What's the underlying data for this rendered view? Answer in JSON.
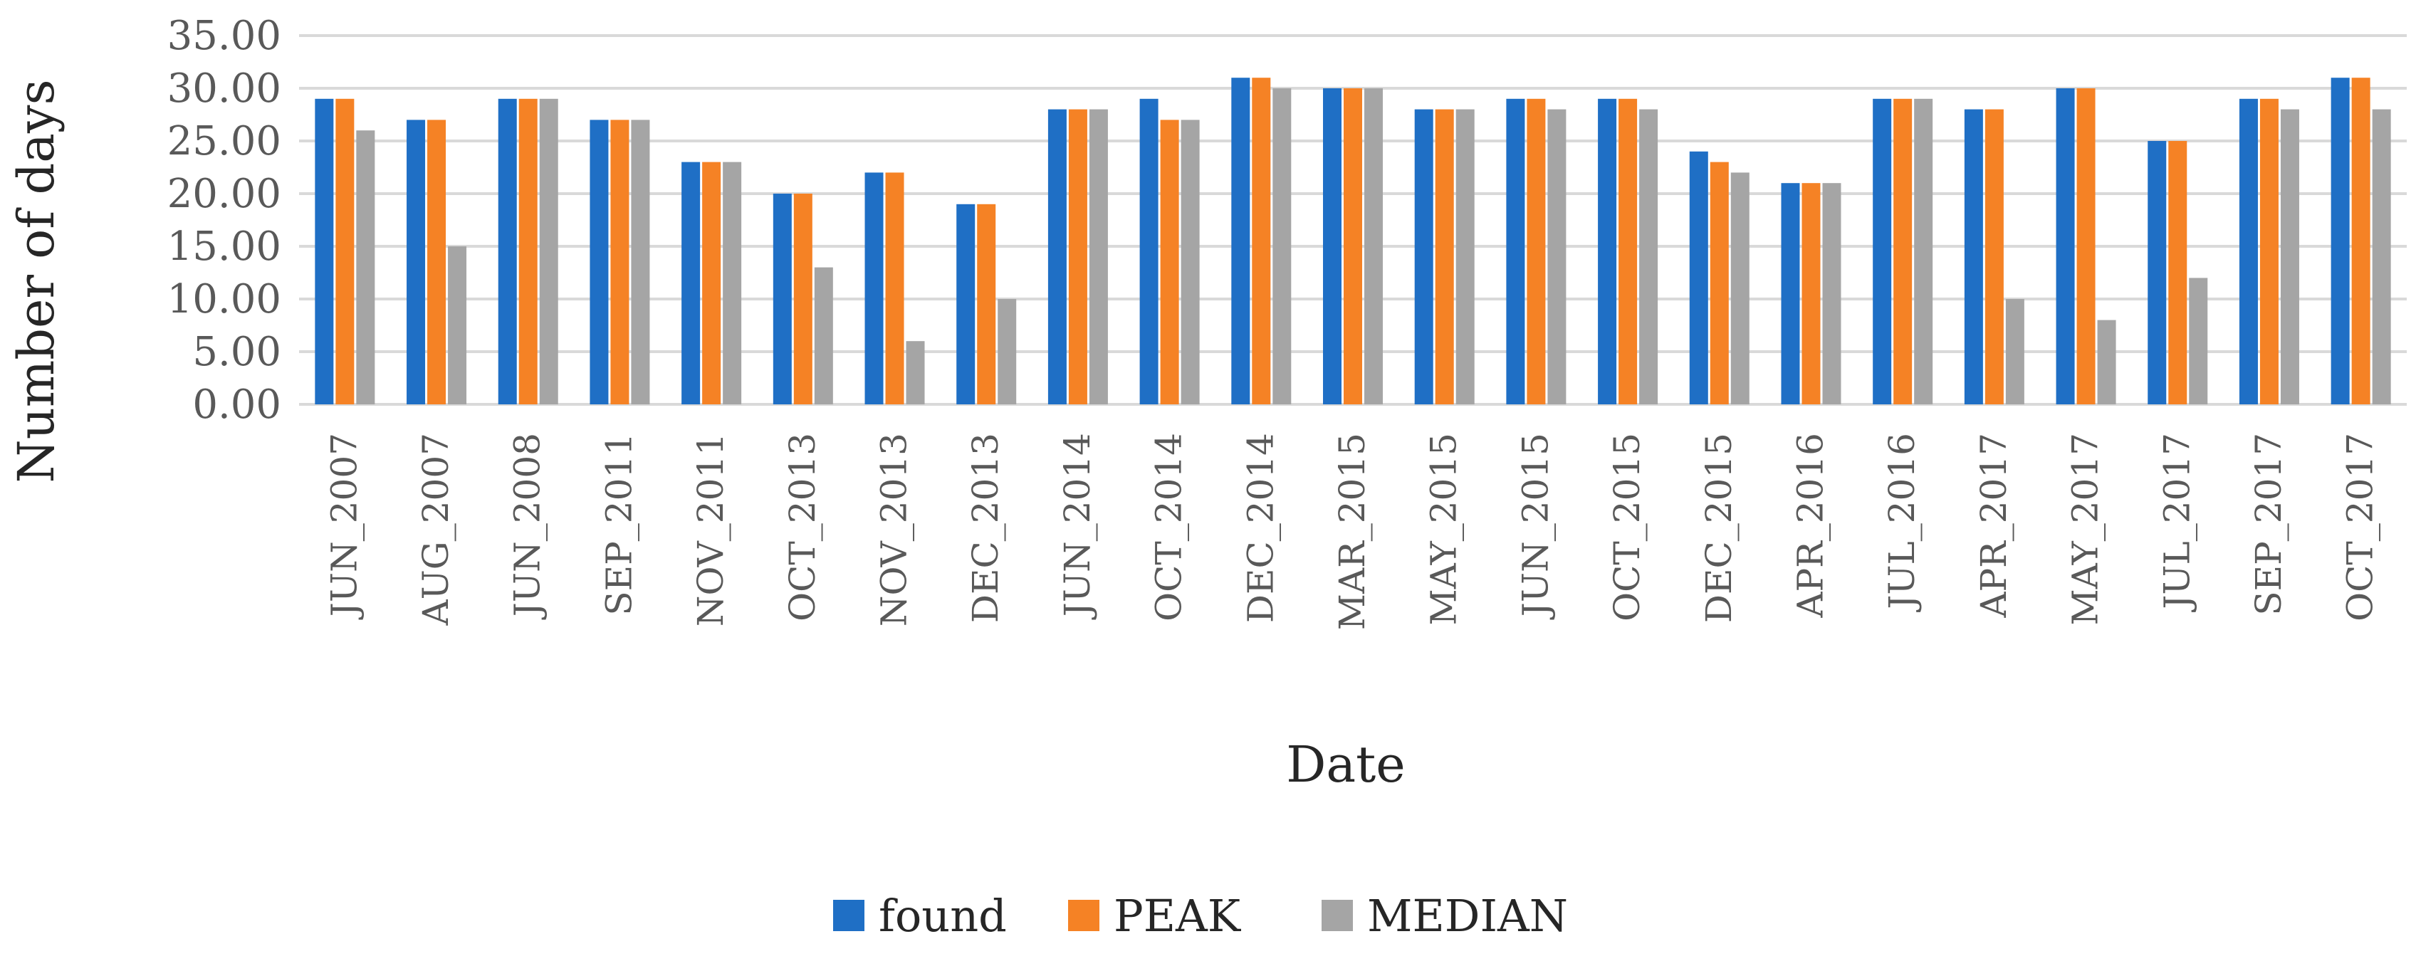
{
  "chart_data": {
    "type": "bar",
    "categories": [
      "JUN_2007",
      "AUG_2007",
      "JUN_2008",
      "SEP_2011",
      "NOV_2011",
      "OCT_2013",
      "NOV_2013",
      "DEC_2013",
      "JUN_2014",
      "OCT_2014",
      "DEC_2014",
      "MAR_2015",
      "MAY_2015",
      "JUN_2015",
      "OCT_2015",
      "DEC_2015",
      "APR_2016",
      "JUL_2016",
      "APR_2017",
      "MAY_2017",
      "JUL_2017",
      "SEP_2017",
      "OCT_2017"
    ],
    "series": [
      {
        "name": "found",
        "color": "#1f6fc5",
        "values": [
          29,
          27,
          29,
          27,
          23,
          20,
          22,
          19,
          28,
          29,
          31,
          30,
          28,
          29,
          29,
          24,
          21,
          29,
          28,
          30,
          25,
          29,
          31
        ]
      },
      {
        "name": "PEAK",
        "color": "#f58225",
        "values": [
          29,
          27,
          29,
          27,
          23,
          20,
          22,
          19,
          28,
          27,
          31,
          30,
          28,
          29,
          29,
          23,
          21,
          29,
          28,
          30,
          25,
          29,
          31
        ]
      },
      {
        "name": "MEDIAN",
        "color": "#a5a5a5",
        "values": [
          26,
          15,
          29,
          27,
          23,
          13,
          6,
          10,
          28,
          27,
          30,
          30,
          28,
          28,
          28,
          22,
          21,
          29,
          10,
          8,
          12,
          28,
          28
        ]
      }
    ],
    "title": "",
    "xlabel": "Date",
    "ylabel": "Number of days",
    "ylim": [
      0,
      35
    ],
    "yticks": [
      "0.00",
      "5.00",
      "10.00",
      "15.00",
      "20.00",
      "25.00",
      "30.00",
      "35.00"
    ],
    "grid": "horizontal",
    "legend": "bottom-center"
  }
}
